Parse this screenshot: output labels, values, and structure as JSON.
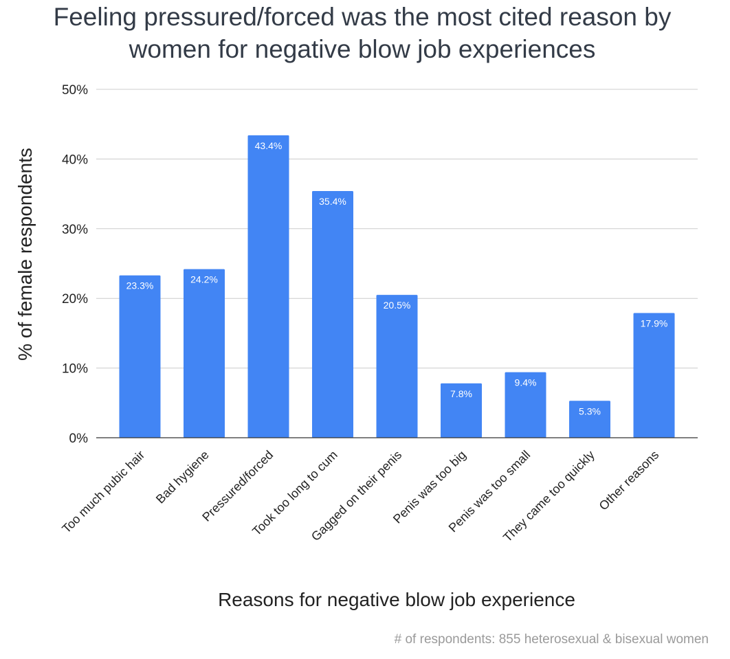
{
  "chart_data": {
    "type": "bar",
    "title_lines": [
      "Feeling pressured/forced was the most cited reason by",
      "women for negative blow job experiences"
    ],
    "xlabel": "Reasons for negative blow job experience",
    "ylabel": "% of female respondents",
    "categories": [
      "Too much pubic hair",
      "Bad hygiene",
      "Pressured/forced",
      "Took too long to cum",
      "Gagged on their penis",
      "Penis was too big",
      "Penis was too small",
      "They came too quickly",
      "Other reasons"
    ],
    "values": [
      23.3,
      24.2,
      43.4,
      35.4,
      20.5,
      7.8,
      9.4,
      5.3,
      17.9
    ],
    "value_labels": [
      "23.3%",
      "24.2%",
      "43.4%",
      "35.4%",
      "20.5%",
      "7.8%",
      "9.4%",
      "5.3%",
      "17.9%"
    ],
    "ylim": [
      0,
      50
    ],
    "yticks": [
      0,
      10,
      20,
      30,
      40,
      50
    ],
    "ytick_labels": [
      "0%",
      "10%",
      "20%",
      "30%",
      "40%",
      "50%"
    ],
    "grid": true,
    "legend": "none",
    "bar_color": "#4285f4",
    "footnote": "# of respondents: 855 heterosexual & bisexual women"
  }
}
